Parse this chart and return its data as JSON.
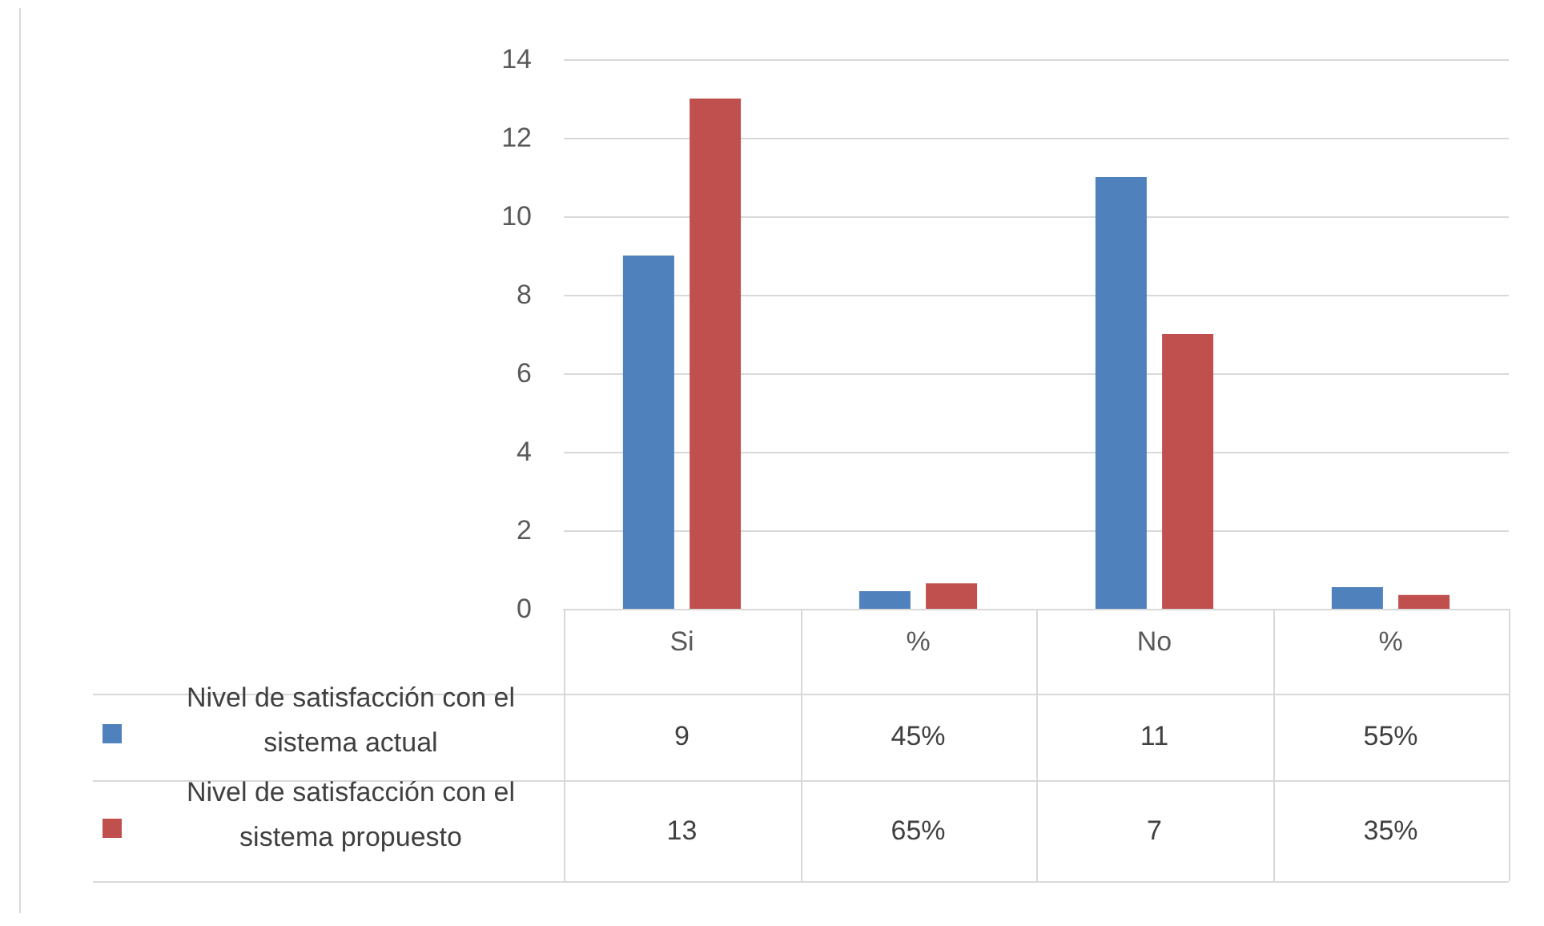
{
  "chart_data": {
    "type": "bar",
    "categories": [
      "Si",
      "%",
      "No",
      "%"
    ],
    "series": [
      {
        "name": "Nivel de satisfacción con el sistema actual",
        "color": "#4f81bd",
        "values": [
          9,
          0.45,
          11,
          0.55
        ],
        "value_labels": [
          "9",
          "45%",
          "11",
          "55%"
        ]
      },
      {
        "name": "Nivel de satisfacción con el sistema propuesto",
        "color": "#c0504d",
        "values": [
          13,
          0.65,
          7,
          0.35
        ],
        "value_labels": [
          "13",
          "65%",
          "7",
          "35%"
        ]
      }
    ],
    "ylim": [
      0,
      14
    ],
    "yticks": [
      0,
      2,
      4,
      6,
      8,
      10,
      12,
      14
    ],
    "grid": "y",
    "legend": "bottom left"
  }
}
